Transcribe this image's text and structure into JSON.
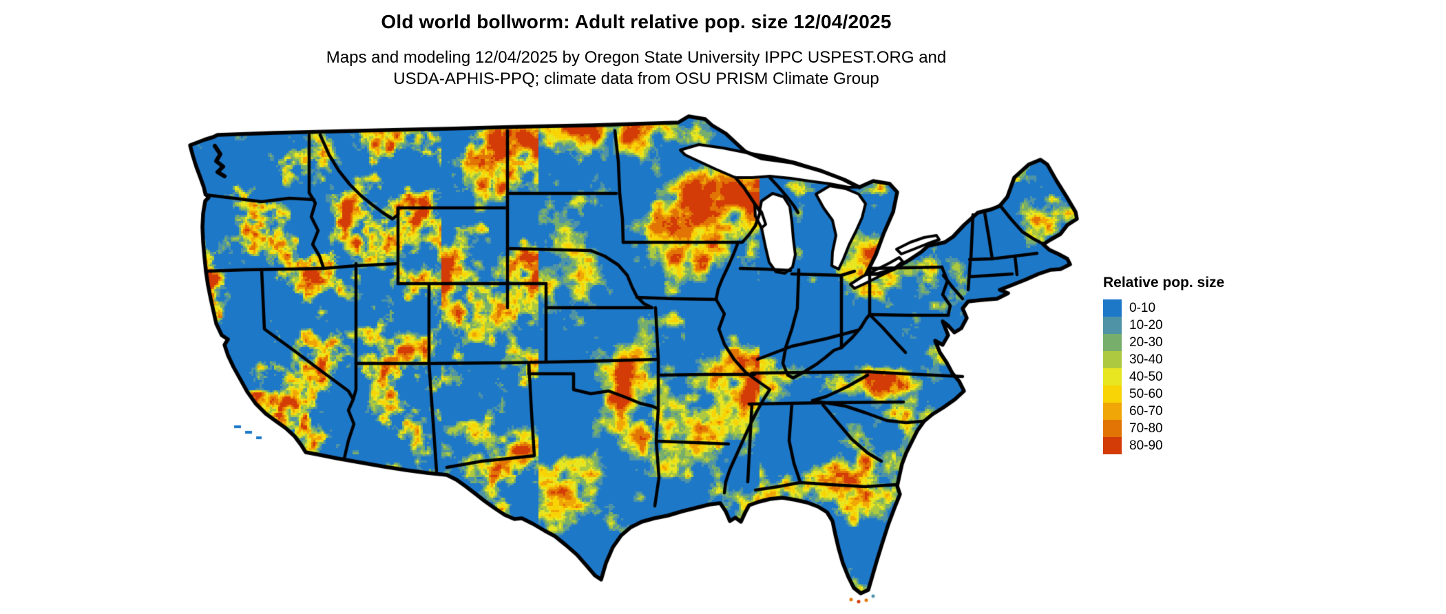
{
  "header": {
    "title": "Old world bollworm: Adult relative pop. size 12/04/2025",
    "subtitle_line1": "Maps and modeling 12/04/2025 by Oregon State University IPPC USPEST.ORG and",
    "subtitle_line2": "USDA-APHIS-PPQ; climate data from OSU PRISM Climate Group"
  },
  "legend": {
    "title": "Relative pop. size",
    "items": [
      {
        "label": "0-10",
        "color": "#1E78C8"
      },
      {
        "label": "10-20",
        "color": "#4E93A6"
      },
      {
        "label": "20-30",
        "color": "#77AE6B"
      },
      {
        "label": "30-40",
        "color": "#ADC93F"
      },
      {
        "label": "40-50",
        "color": "#E7E621"
      },
      {
        "label": "50-60",
        "color": "#F8D406"
      },
      {
        "label": "60-70",
        "color": "#EFA606"
      },
      {
        "label": "70-80",
        "color": "#E27406"
      },
      {
        "label": "80-90",
        "color": "#D33B07"
      }
    ]
  },
  "map": {
    "base_color": "#1E78C8",
    "water_color": "#FFFFFF",
    "state_border_color": "#000000"
  }
}
